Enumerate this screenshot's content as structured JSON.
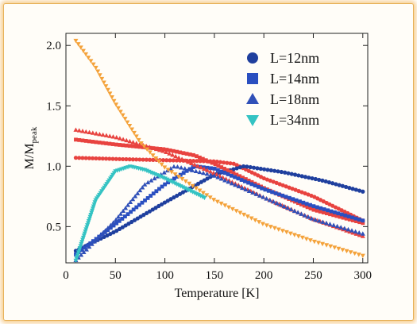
{
  "chart_data": {
    "type": "scatter",
    "xlabel": "Temperature [K]",
    "ylabel": "M/M",
    "ylabel_sub": "peak",
    "xlim": [
      0,
      305
    ],
    "ylim": [
      0.2,
      2.1
    ],
    "xticks": [
      0,
      50,
      100,
      150,
      200,
      250,
      300
    ],
    "yticks": [
      0.5,
      1.0,
      1.5,
      2.0
    ],
    "ytick_labels": [
      "0.5",
      "1.0",
      "1.5",
      "2.0"
    ],
    "grid": false,
    "legend_position": "top-right",
    "legend": [
      {
        "label": "L=12nm",
        "marker": "circle",
        "color": "#1f3f9e"
      },
      {
        "label": "L=14nm",
        "marker": "square",
        "color": "#2a4fc0"
      },
      {
        "label": "L=18nm",
        "marker": "triangle-up",
        "color": "#3050b8"
      },
      {
        "label": "L=34nm",
        "marker": "triangle-down",
        "color": "#34c3c3"
      }
    ],
    "series": [
      {
        "name": "L=12nm",
        "color": "#e8433f",
        "role": "red",
        "x": [
          10,
          50,
          100,
          150,
          170,
          200,
          250,
          300
        ],
        "y": [
          1.07,
          1.06,
          1.05,
          1.04,
          1.02,
          0.9,
          0.75,
          0.55
        ]
      },
      {
        "name": "L=12nm",
        "color": "#1f3f9e",
        "role": "blue",
        "x": [
          10,
          50,
          100,
          150,
          180,
          220,
          260,
          300
        ],
        "y": [
          0.3,
          0.46,
          0.7,
          0.93,
          1.0,
          0.95,
          0.88,
          0.79
        ]
      },
      {
        "name": "L=14nm",
        "color": "#e8433f",
        "role": "red",
        "x": [
          10,
          50,
          100,
          130,
          150,
          200,
          250,
          300
        ],
        "y": [
          1.22,
          1.18,
          1.14,
          1.09,
          1.02,
          0.82,
          0.64,
          0.53
        ]
      },
      {
        "name": "L=14nm",
        "color": "#2a4fc0",
        "role": "blue",
        "x": [
          10,
          50,
          100,
          130,
          150,
          200,
          250,
          300
        ],
        "y": [
          0.27,
          0.52,
          0.85,
          1.0,
          0.98,
          0.81,
          0.67,
          0.55
        ]
      },
      {
        "name": "L=18nm",
        "color": "#e8433f",
        "role": "red",
        "x": [
          10,
          50,
          100,
          150,
          200,
          250,
          300
        ],
        "y": [
          1.3,
          1.24,
          1.12,
          0.94,
          0.74,
          0.56,
          0.42
        ]
      },
      {
        "name": "L=18nm",
        "color": "#3050b8",
        "role": "blue",
        "x": [
          10,
          50,
          80,
          110,
          150,
          200,
          250,
          300
        ],
        "y": [
          0.22,
          0.55,
          0.85,
          1.0,
          0.92,
          0.74,
          0.56,
          0.44
        ]
      },
      {
        "name": "L=34nm",
        "color": "#f4a23a",
        "role": "orange",
        "x": [
          10,
          30,
          50,
          75,
          100,
          150,
          200,
          250,
          300
        ],
        "y": [
          2.04,
          1.82,
          1.52,
          1.2,
          0.99,
          0.72,
          0.52,
          0.38,
          0.26
        ]
      },
      {
        "name": "L=34nm",
        "color": "#34c3c3",
        "role": "cyan",
        "x": [
          10,
          30,
          50,
          65,
          80,
          100,
          120,
          140
        ],
        "y": [
          0.22,
          0.72,
          0.96,
          1.0,
          0.97,
          0.9,
          0.82,
          0.74
        ]
      }
    ]
  }
}
